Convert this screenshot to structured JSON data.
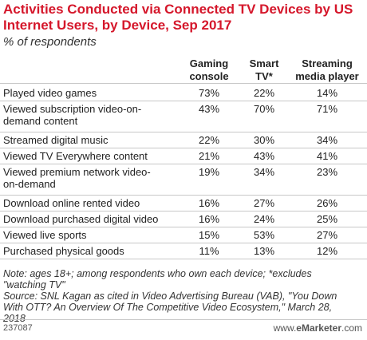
{
  "title": "Activities Conducted via Connected TV Devices by US Internet Users, by Device, Sep 2017",
  "subtitle": "% of respondents",
  "columns": [
    {
      "line1": "Gaming",
      "line2": "console"
    },
    {
      "line1": "Smart",
      "line2": "TV*"
    },
    {
      "line1": "Streaming",
      "line2": "media player"
    }
  ],
  "rows": [
    {
      "line1": "Played video games",
      "line2": "",
      "values": [
        "73%",
        "22%",
        "14%"
      ]
    },
    {
      "line1": "Viewed subscription video-on-",
      "line2": "demand content",
      "values": [
        "43%",
        "70%",
        "71%"
      ]
    },
    {
      "line1": "Streamed digital music",
      "line2": "",
      "values": [
        "22%",
        "30%",
        "34%"
      ]
    },
    {
      "line1": "Viewed TV Everywhere content",
      "line2": "",
      "values": [
        "21%",
        "43%",
        "41%"
      ]
    },
    {
      "line1": "Viewed premium network video-",
      "line2": "on-demand",
      "values": [
        "19%",
        "34%",
        "23%"
      ]
    },
    {
      "line1": "Download online rented video",
      "line2": "",
      "values": [
        "16%",
        "27%",
        "26%"
      ]
    },
    {
      "line1": "Download purchased digital video",
      "line2": "",
      "values": [
        "16%",
        "24%",
        "25%"
      ]
    },
    {
      "line1": "Viewed live sports",
      "line2": "",
      "values": [
        "15%",
        "53%",
        "27%"
      ]
    },
    {
      "line1": "Purchased physical goods",
      "line2": "",
      "values": [
        "11%",
        "13%",
        "12%"
      ]
    }
  ],
  "note": {
    "line1": "Note: ages 18+; among respondents who own each device; *excludes",
    "line2": "\"watching TV\"",
    "line3": "Source: SNL Kagan as cited in Video Advertising Bureau (VAB), \"You Down",
    "line4": "With OTT? An Overview Of The Competitive Video Ecosystem,\" March 28,",
    "line5": "2018"
  },
  "footer": {
    "code": "237087",
    "brand_prefix": "www.",
    "brand_name": "eMarketer",
    "brand_suffix": ".com"
  },
  "colors": {
    "title": "#d5172b",
    "rule": "#c8c8c8"
  },
  "chart_data": {
    "type": "table",
    "title": "Activities Conducted via Connected TV Devices by US Internet Users, by Device, Sep 2017",
    "subtitle": "% of respondents",
    "categories": [
      "Played video games",
      "Viewed subscription video-on-demand content",
      "Streamed digital music",
      "Viewed TV Everywhere content",
      "Viewed premium network video-on-demand",
      "Download online rented video",
      "Download purchased digital video",
      "Viewed live sports",
      "Purchased physical goods"
    ],
    "series": [
      {
        "name": "Gaming console",
        "values": [
          73,
          43,
          22,
          21,
          19,
          16,
          16,
          15,
          11
        ]
      },
      {
        "name": "Smart TV*",
        "values": [
          22,
          70,
          30,
          43,
          34,
          27,
          24,
          53,
          13
        ]
      },
      {
        "name": "Streaming media player",
        "values": [
          14,
          71,
          34,
          41,
          23,
          26,
          25,
          27,
          12
        ]
      }
    ]
  }
}
